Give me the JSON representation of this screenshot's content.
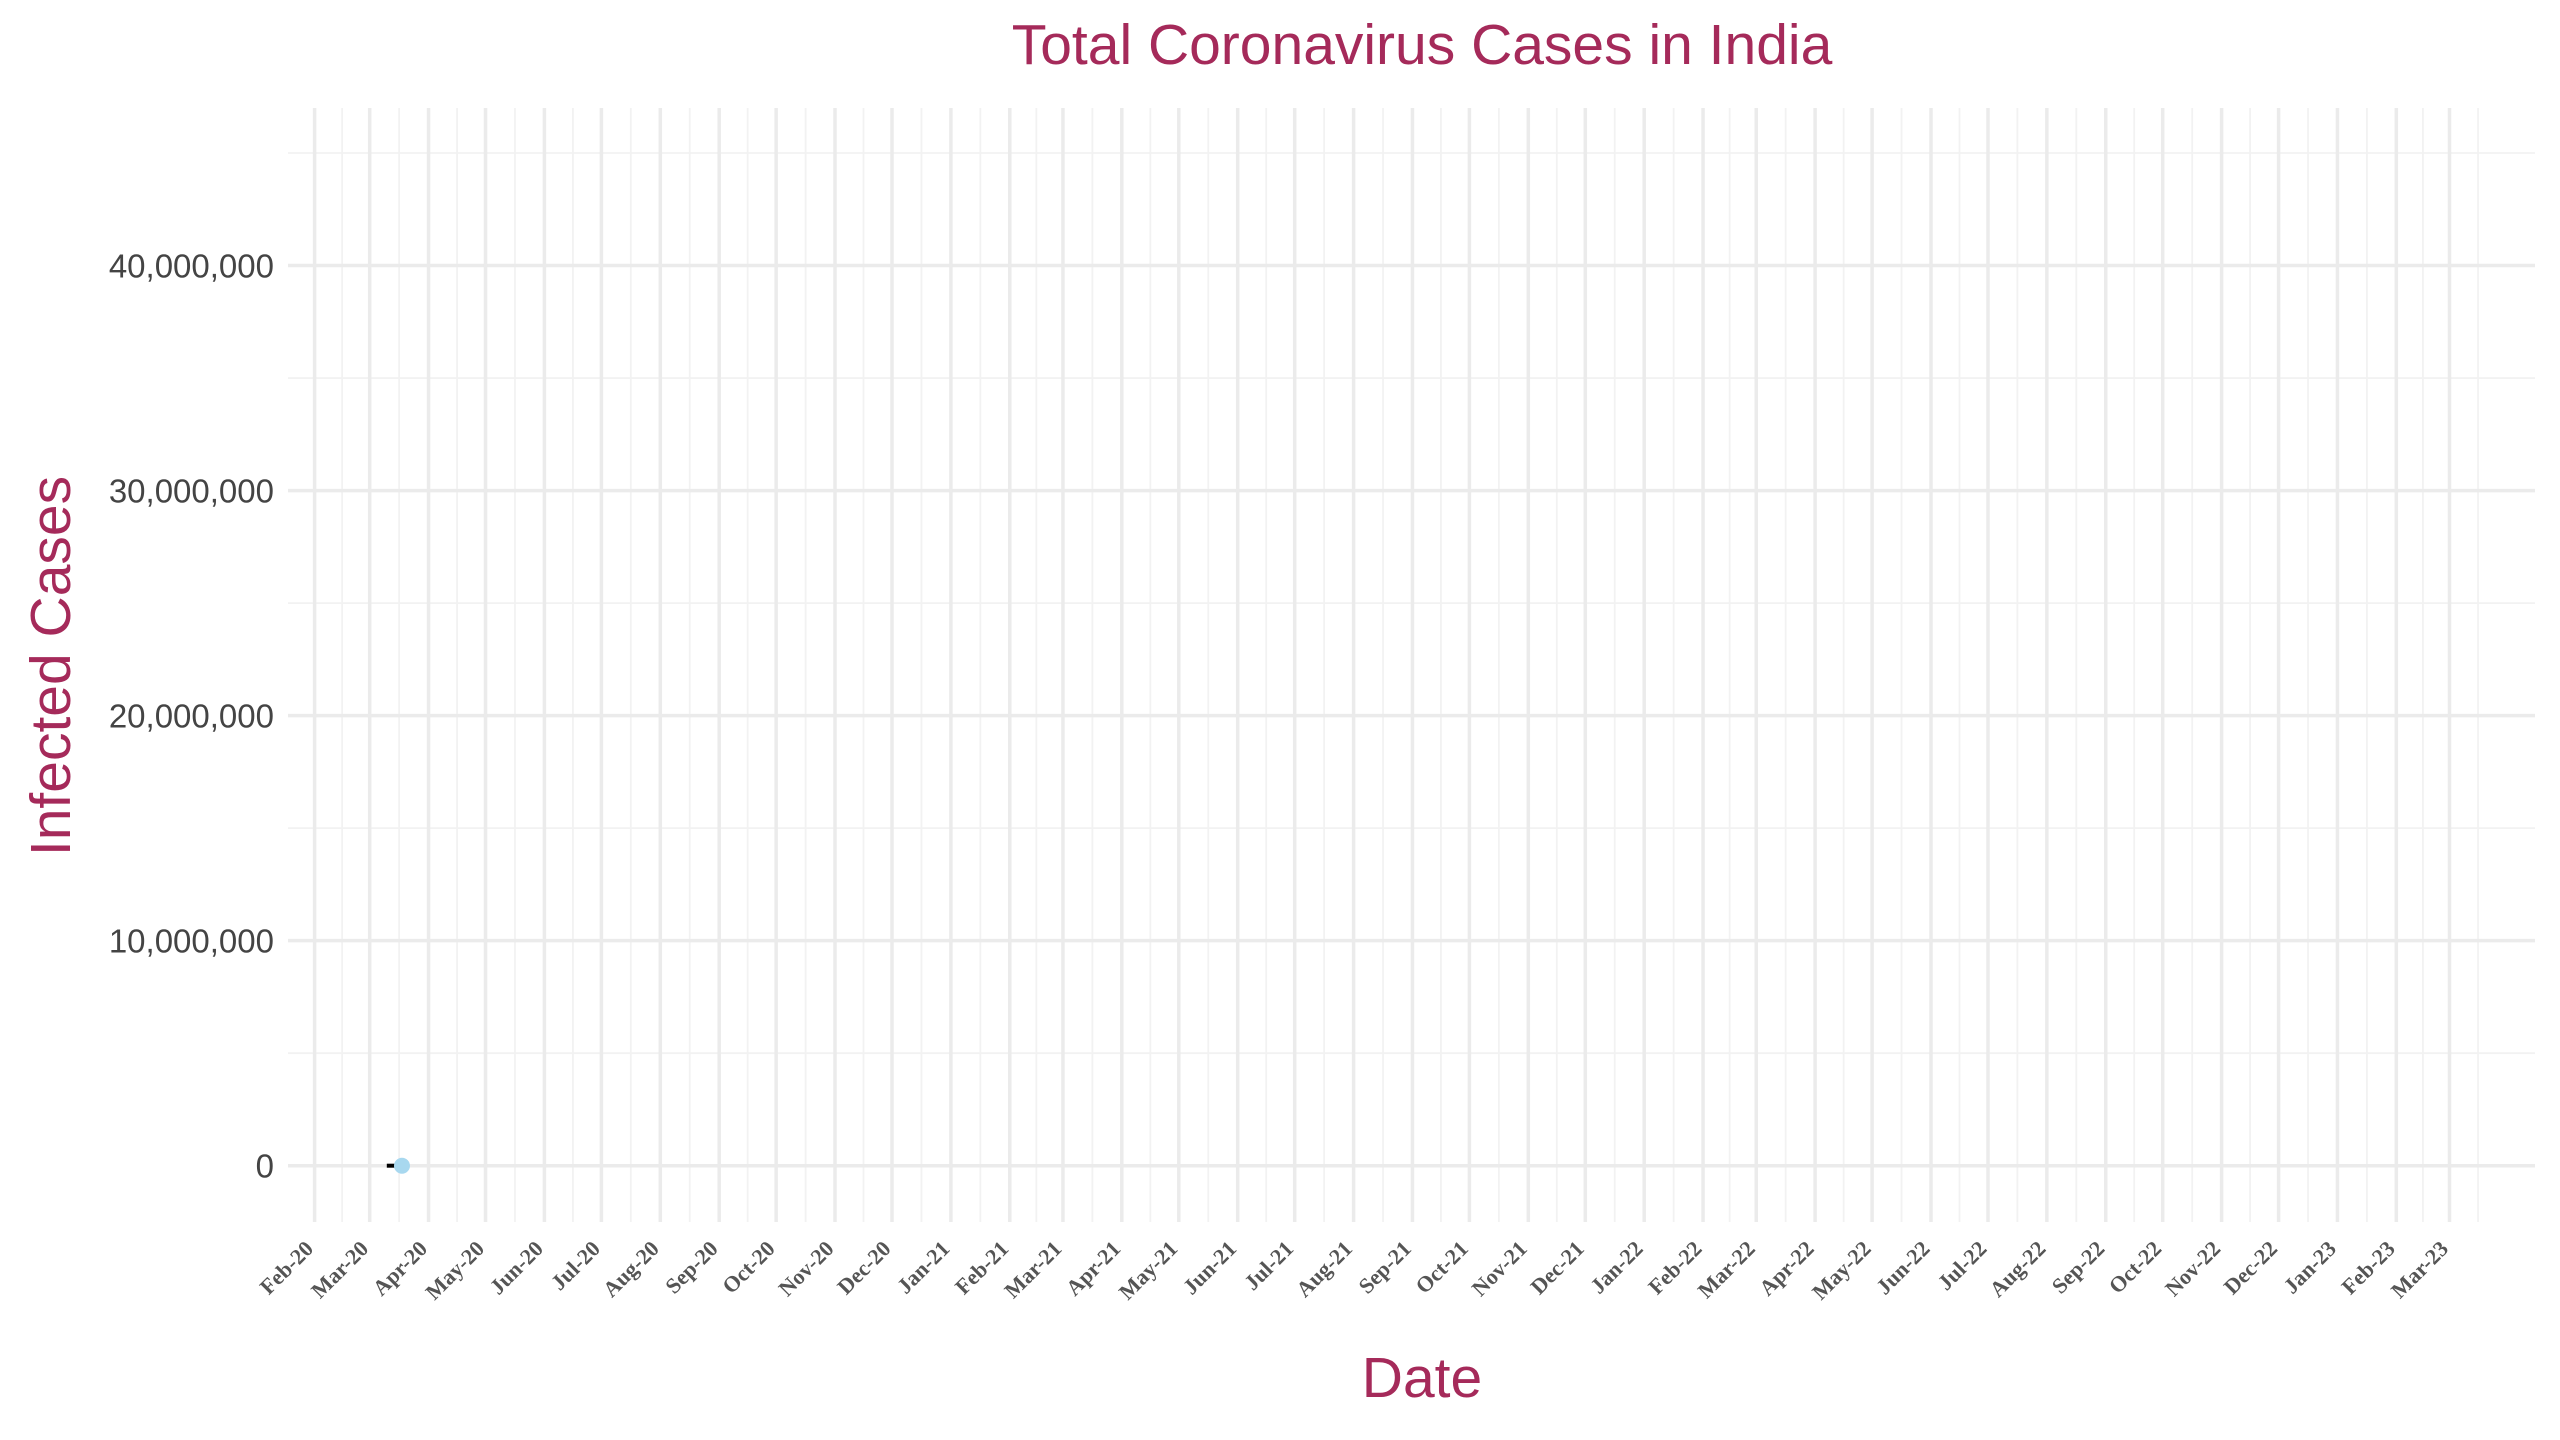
{
  "chart_data": {
    "type": "line",
    "title": "Total Coronavirus Cases in India",
    "xlabel": "Date",
    "ylabel": "Infected Cases",
    "ylim": [
      -2500000,
      47000000
    ],
    "y_ticks": [
      0,
      10000000,
      20000000,
      30000000,
      40000000
    ],
    "y_tick_labels": [
      "0",
      "10,000,000",
      "20,000,000",
      "30,000,000",
      "40,000,000"
    ],
    "xlim": [
      "2020-01-18",
      "2023-04-15"
    ],
    "x_ticks": [
      "2020-02-01",
      "2020-03-01",
      "2020-04-01",
      "2020-05-01",
      "2020-06-01",
      "2020-07-01",
      "2020-08-01",
      "2020-09-01",
      "2020-10-01",
      "2020-11-01",
      "2020-12-01",
      "2021-01-01",
      "2021-02-01",
      "2021-03-01",
      "2021-04-01",
      "2021-05-01",
      "2021-06-01",
      "2021-07-01",
      "2021-08-01",
      "2021-09-01",
      "2021-10-01",
      "2021-11-01",
      "2021-12-01",
      "2022-01-01",
      "2022-02-01",
      "2022-03-01",
      "2022-04-01",
      "2022-05-01",
      "2022-06-01",
      "2022-07-01",
      "2022-08-01",
      "2022-09-01",
      "2022-10-01",
      "2022-11-01",
      "2022-12-01",
      "2023-01-01",
      "2023-02-01",
      "2023-03-01"
    ],
    "x_tick_labels": [
      "Feb-20",
      "Mar-20",
      "Apr-20",
      "May-20",
      "Jun-20",
      "Jul-20",
      "Aug-20",
      "Sep-20",
      "Oct-20",
      "Nov-20",
      "Dec-20",
      "Jan-21",
      "Feb-21",
      "Mar-21",
      "Apr-21",
      "May-21",
      "Jun-21",
      "Jul-21",
      "Aug-21",
      "Sep-21",
      "Oct-21",
      "Nov-21",
      "Dec-21",
      "Jan-22",
      "Feb-22",
      "Mar-22",
      "Apr-22",
      "May-22",
      "Jun-22",
      "Jul-22",
      "Aug-22",
      "Sep-22",
      "Oct-22",
      "Nov-22",
      "Dec-22",
      "Jan-23",
      "Feb-23",
      "Mar-23"
    ],
    "grid": true,
    "series": [
      {
        "color": "#000000",
        "points": [
          {
            "x": "2020-03-10",
            "y": 50
          },
          {
            "x": "2020-03-12",
            "y": 73
          },
          {
            "x": "2020-03-14",
            "y": 100
          },
          {
            "x": "2020-03-16",
            "y": 118
          },
          {
            "x": "2020-03-18",
            "y": 151
          }
        ]
      }
    ],
    "highlight_point": {
      "x": "2020-03-18",
      "y": 151,
      "color": "#a8d8ef"
    }
  }
}
